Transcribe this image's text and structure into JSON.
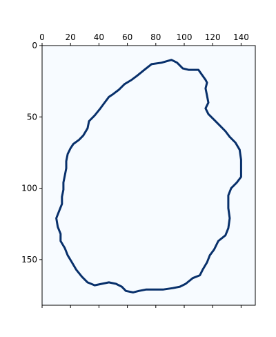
{
  "chart_data": {
    "type": "heatmap",
    "title": "",
    "xlabel": "",
    "ylabel": "",
    "xlim": [
      0,
      150
    ],
    "ylim": [
      182,
      0
    ],
    "x_ticks": [
      0,
      20,
      40,
      60,
      80,
      100,
      120,
      140
    ],
    "x_tick_labels": [
      "0",
      "20",
      "40",
      "60",
      "80",
      "100",
      "120",
      "140"
    ],
    "y_ticks": [
      0,
      50,
      100,
      150
    ],
    "y_tick_labels": [
      "0",
      "50",
      "100",
      "150"
    ],
    "x_tick_position": "top",
    "grid": false,
    "colormap": "Blues",
    "background_value": 0,
    "contour_value": 1,
    "colors": {
      "background": "#f7fbff",
      "contour": "#08306b",
      "axis": "#000000"
    },
    "contour": [
      [
        91,
        10
      ],
      [
        84,
        12
      ],
      [
        77,
        13
      ],
      [
        72,
        17
      ],
      [
        67,
        21
      ],
      [
        63,
        24
      ],
      [
        58,
        27
      ],
      [
        54,
        31
      ],
      [
        50,
        34
      ],
      [
        47,
        36
      ],
      [
        44,
        40
      ],
      [
        41,
        44
      ],
      [
        37,
        49
      ],
      [
        33,
        53
      ],
      [
        32,
        58
      ],
      [
        29,
        63
      ],
      [
        26,
        66
      ],
      [
        22,
        69
      ],
      [
        20,
        72
      ],
      [
        18,
        76
      ],
      [
        17,
        81
      ],
      [
        17,
        86
      ],
      [
        16,
        91
      ],
      [
        15,
        96
      ],
      [
        15,
        101
      ],
      [
        14,
        106
      ],
      [
        14,
        111
      ],
      [
        12,
        116
      ],
      [
        10,
        121
      ],
      [
        11,
        127
      ],
      [
        13,
        132
      ],
      [
        13,
        137
      ],
      [
        16,
        142
      ],
      [
        18,
        147
      ],
      [
        21,
        152
      ],
      [
        24,
        157
      ],
      [
        28,
        162
      ],
      [
        32,
        166
      ],
      [
        37,
        168
      ],
      [
        42,
        167
      ],
      [
        47,
        166
      ],
      [
        52,
        167
      ],
      [
        56,
        169
      ],
      [
        59,
        172
      ],
      [
        64,
        173
      ],
      [
        68,
        172
      ],
      [
        73,
        171
      ],
      [
        79,
        171
      ],
      [
        85,
        171
      ],
      [
        92,
        170
      ],
      [
        97,
        169
      ],
      [
        101,
        167
      ],
      [
        106,
        163
      ],
      [
        111,
        161
      ],
      [
        113,
        157
      ],
      [
        116,
        152
      ],
      [
        118,
        147
      ],
      [
        121,
        143
      ],
      [
        124,
        137
      ],
      [
        129,
        133
      ],
      [
        131,
        128
      ],
      [
        132,
        121
      ],
      [
        131,
        114
      ],
      [
        131,
        105
      ],
      [
        133,
        100
      ],
      [
        137,
        96
      ],
      [
        140,
        92
      ],
      [
        140,
        86
      ],
      [
        140,
        80
      ],
      [
        139,
        73
      ],
      [
        136,
        68
      ],
      [
        132,
        64
      ],
      [
        129,
        60
      ],
      [
        125,
        56
      ],
      [
        121,
        52
      ],
      [
        117,
        48
      ],
      [
        115,
        44
      ],
      [
        117,
        40
      ],
      [
        116,
        35
      ],
      [
        115,
        30
      ],
      [
        116,
        26
      ],
      [
        115,
        24
      ],
      [
        110,
        17
      ],
      [
        103,
        17
      ],
      [
        99,
        16
      ],
      [
        95,
        12
      ]
    ]
  }
}
